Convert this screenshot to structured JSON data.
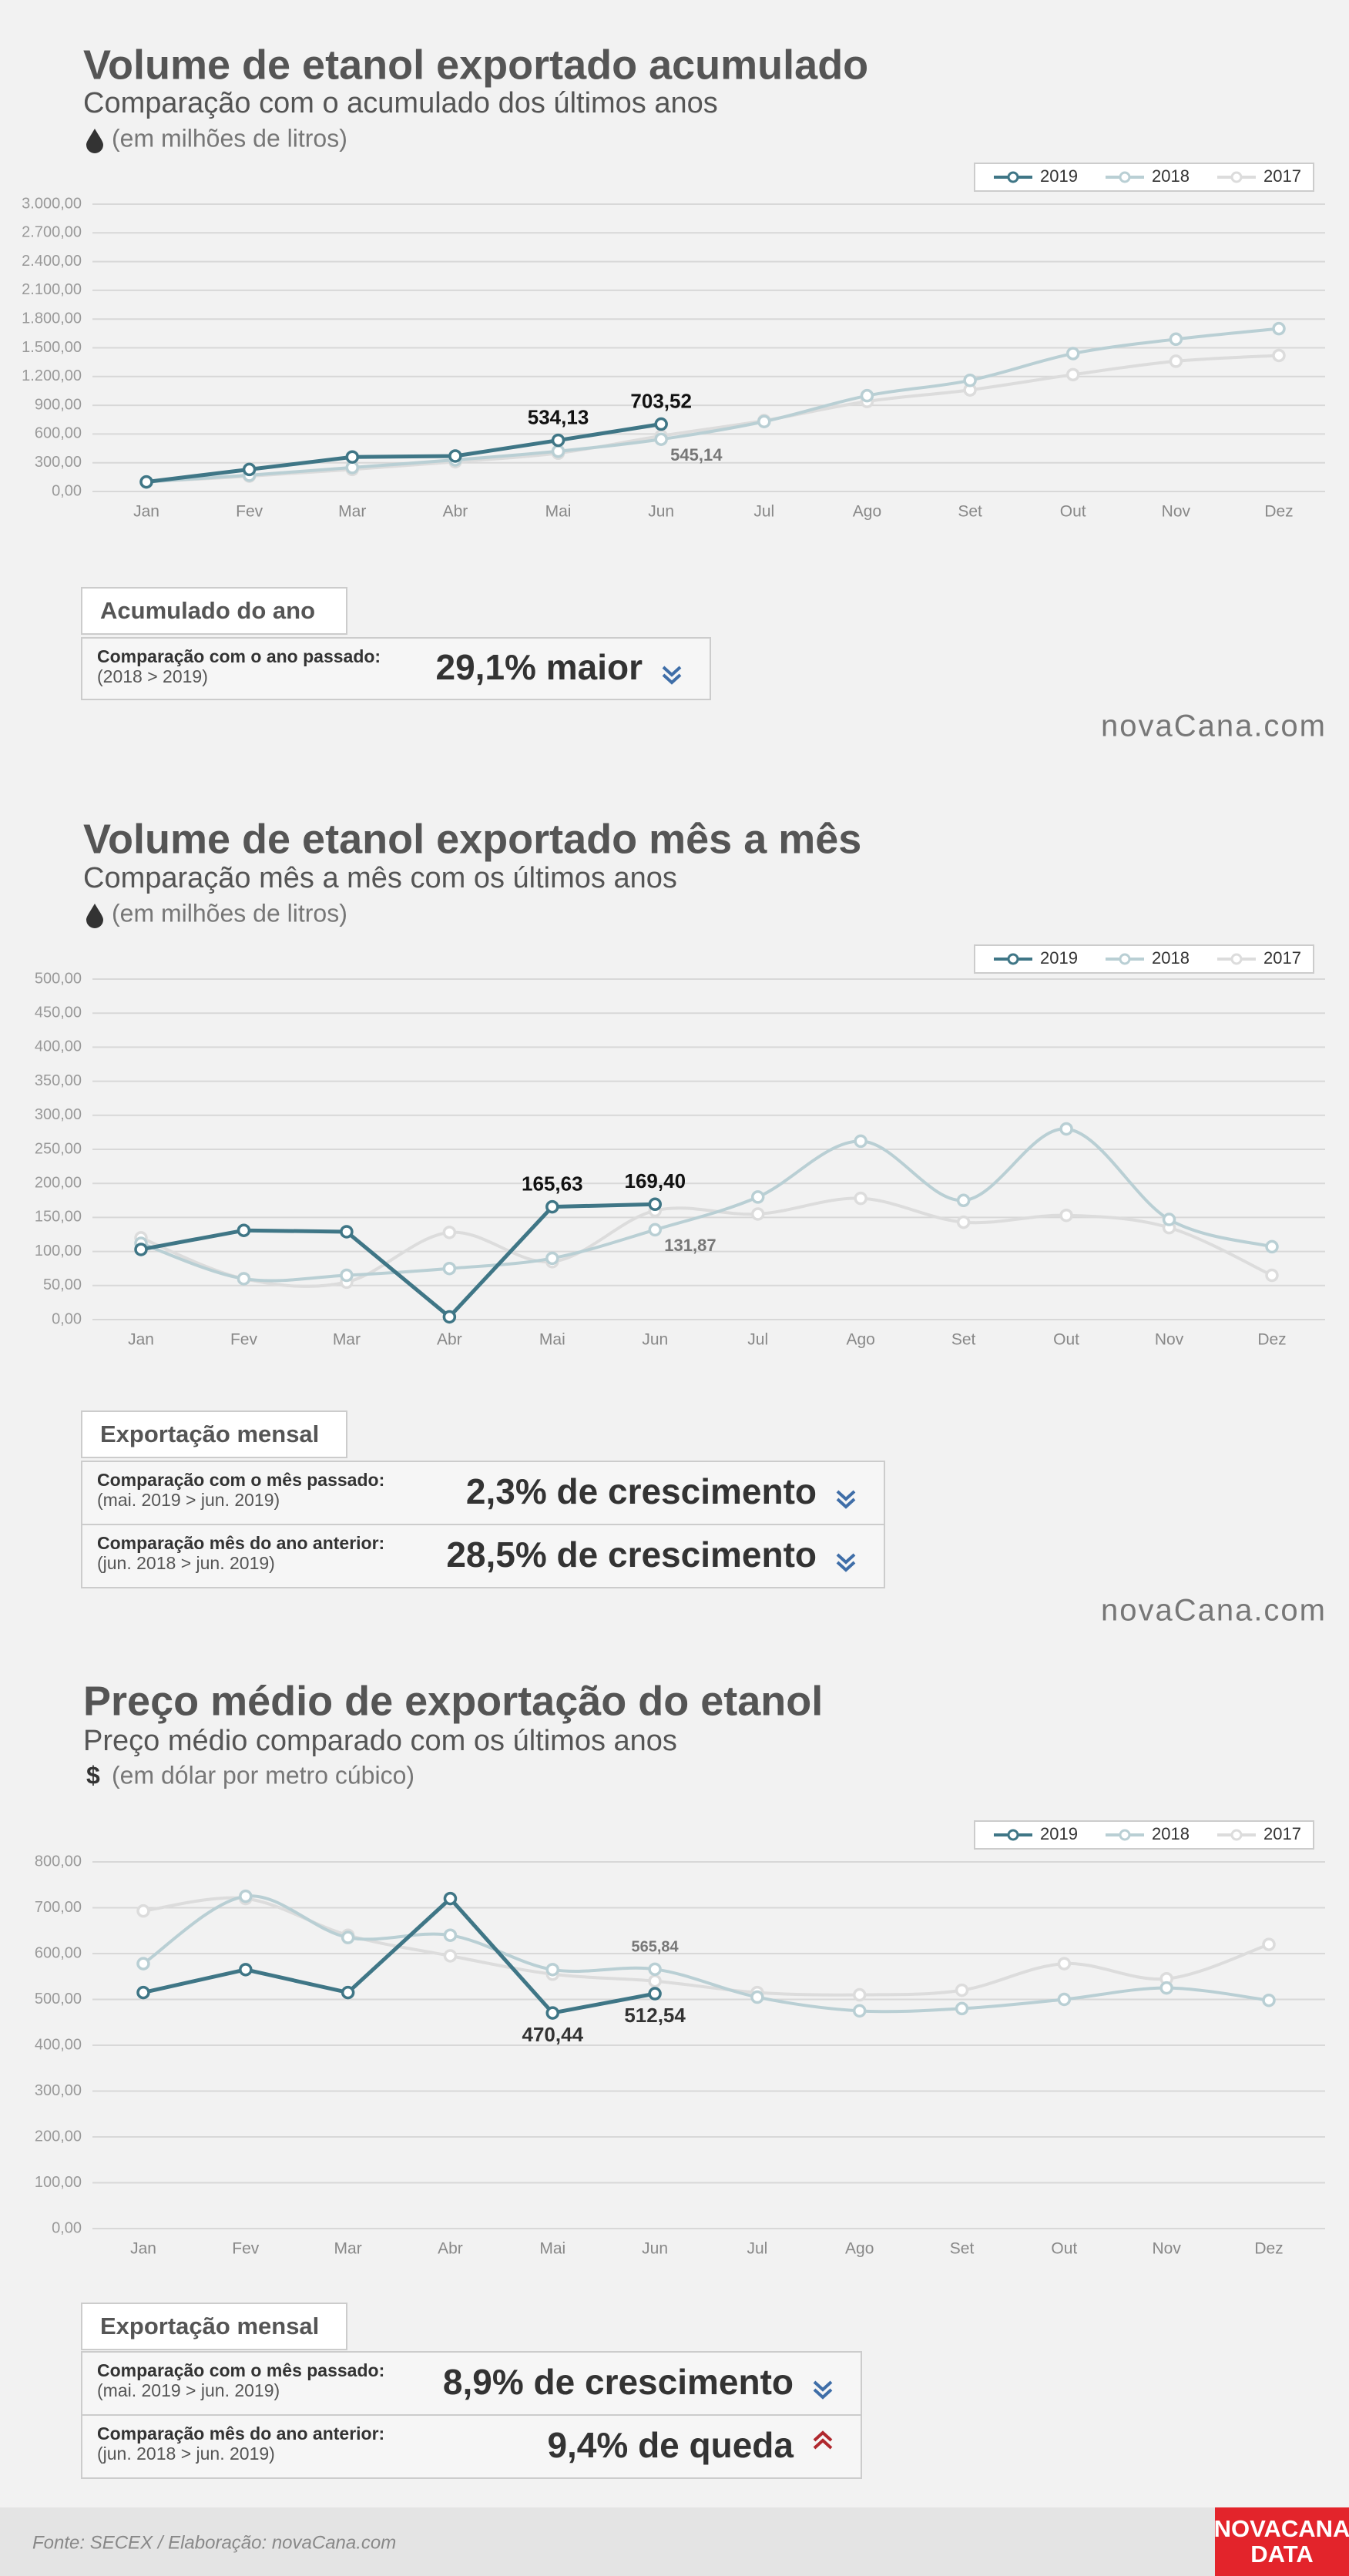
{
  "chart_data": [
    {
      "type": "line",
      "title": "Volume de etanol exportado acumulado",
      "subtitle": "Comparação com o acumulado dos últimos anos",
      "unit": "(em milhões de litros)",
      "categories": [
        "Jan",
        "Fev",
        "Mar",
        "Abr",
        "Mai",
        "Jun",
        "Jul",
        "Ago",
        "Set",
        "Out",
        "Nov",
        "Dez"
      ],
      "series": [
        {
          "name": "2019",
          "color": "#3f7686",
          "smooth": false,
          "values": [
            100,
            230,
            360,
            370,
            534.13,
            703.52,
            null,
            null,
            null,
            null,
            null,
            null
          ],
          "value_labels": [
            null,
            null,
            null,
            null,
            "534,13",
            "703,52",
            null,
            null,
            null,
            null,
            null,
            null
          ]
        },
        {
          "name": "2018",
          "color": "#b9cfd4",
          "smooth": true,
          "values": [
            100,
            170,
            250,
            330,
            420,
            545.14,
            730,
            1000,
            1160,
            1440,
            1590,
            1700
          ],
          "value_labels": [
            null,
            null,
            null,
            null,
            null,
            "545,14",
            null,
            null,
            null,
            null,
            null,
            null
          ]
        },
        {
          "name": "2017",
          "color": "#dcdcdc",
          "smooth": true,
          "values": [
            100,
            160,
            230,
            310,
            400,
            580,
            740,
            940,
            1060,
            1220,
            1360,
            1420
          ]
        }
      ],
      "ylim": [
        0,
        3000
      ],
      "yticks": [
        {
          "value": 0,
          "label": "0,00"
        },
        {
          "value": 300,
          "label": "300,00"
        },
        {
          "value": 600,
          "label": "600,00"
        },
        {
          "value": 900,
          "label": "900,00"
        },
        {
          "value": 1200,
          "label": "1.200,00"
        },
        {
          "value": 1500,
          "label": "1.500,00"
        },
        {
          "value": 1800,
          "label": "1.800,00"
        },
        {
          "value": 2100,
          "label": "2.100,00"
        },
        {
          "value": 2400,
          "label": "2.400,00"
        },
        {
          "value": 2700,
          "label": "2.700,00"
        },
        {
          "value": 3000,
          "label": "3.000,00"
        }
      ],
      "grid": true,
      "legend": "top-right",
      "summary": {
        "title": "Acumulado do ano",
        "rows": [
          {
            "label": "Comparação com o ano passado:",
            "detail": "(2018 > 2019)",
            "value": "29,1% maior",
            "direction": "up"
          }
        ]
      },
      "logo": "novaCana.com"
    },
    {
      "type": "line",
      "title": "Volume de etanol exportado mês a mês",
      "subtitle": "Comparação mês a mês com os últimos anos",
      "unit": "(em milhões de litros)",
      "categories": [
        "Jan",
        "Fev",
        "Mar",
        "Abr",
        "Mai",
        "Jun",
        "Jul",
        "Ago",
        "Set",
        "Out",
        "Nov",
        "Dez"
      ],
      "series": [
        {
          "name": "2019",
          "color": "#3f7686",
          "smooth": false,
          "values": [
            103,
            131,
            129,
            4,
            165.63,
            169.4,
            null,
            null,
            null,
            null,
            null,
            null
          ],
          "value_labels": [
            null,
            null,
            null,
            null,
            "165,63",
            "169,40",
            null,
            null,
            null,
            null,
            null,
            null
          ]
        },
        {
          "name": "2018",
          "color": "#b9cfd4",
          "smooth": true,
          "values": [
            112,
            60,
            65,
            75,
            90,
            131.87,
            180,
            262,
            175,
            280,
            147,
            107
          ],
          "value_labels": [
            null,
            null,
            null,
            null,
            null,
            "131,87",
            null,
            null,
            null,
            null,
            null,
            null
          ]
        },
        {
          "name": "2017",
          "color": "#dcdcdc",
          "smooth": true,
          "values": [
            120,
            60,
            55,
            128,
            85,
            160,
            155,
            178,
            143,
            153,
            135,
            65
          ]
        }
      ],
      "ylim": [
        0,
        500
      ],
      "yticks": [
        {
          "value": 0,
          "label": "0,00"
        },
        {
          "value": 50,
          "label": "50,00"
        },
        {
          "value": 100,
          "label": "100,00"
        },
        {
          "value": 150,
          "label": "150,00"
        },
        {
          "value": 200,
          "label": "200,00"
        },
        {
          "value": 250,
          "label": "250,00"
        },
        {
          "value": 300,
          "label": "300,00"
        },
        {
          "value": 350,
          "label": "350,00"
        },
        {
          "value": 400,
          "label": "400,00"
        },
        {
          "value": 450,
          "label": "450,00"
        },
        {
          "value": 500,
          "label": "500,00"
        }
      ],
      "grid": true,
      "legend": "top-right",
      "summary": {
        "title": "Exportação mensal",
        "rows": [
          {
            "label": "Comparação com o mês passado:",
            "detail": "(mai. 2019 > jun. 2019)",
            "value": "2,3% de crescimento",
            "direction": "up"
          },
          {
            "label": "Comparação mês do ano anterior:",
            "detail": "(jun. 2018 > jun. 2019)",
            "value": "28,5% de crescimento",
            "direction": "up"
          }
        ]
      },
      "logo": "novaCana.com"
    },
    {
      "type": "line",
      "title": "Preço médio de exportação do etanol",
      "subtitle": "Preço médio comparado com os últimos anos",
      "unit_symbol": "$",
      "unit": "(em dólar por metro cúbico)",
      "categories": [
        "Jan",
        "Fev",
        "Mar",
        "Abr",
        "Mai",
        "Jun",
        "Jul",
        "Ago",
        "Set",
        "Out",
        "Nov",
        "Dez"
      ],
      "series": [
        {
          "name": "2019",
          "color": "#3f7686",
          "smooth": false,
          "values": [
            515,
            565,
            515,
            720,
            470.44,
            512.54,
            null,
            null,
            null,
            null,
            null,
            null
          ],
          "value_labels": [
            null,
            null,
            null,
            null,
            "470,44",
            "512,54",
            null,
            null,
            null,
            null,
            null,
            null
          ]
        },
        {
          "name": "2018",
          "color": "#b9cfd4",
          "smooth": true,
          "values": [
            578,
            725,
            635,
            640,
            565,
            565.84,
            505,
            475,
            480,
            500,
            525,
            498
          ],
          "value_labels": [
            null,
            null,
            null,
            null,
            null,
            "565,84",
            null,
            null,
            null,
            null,
            null,
            null
          ]
        },
        {
          "name": "2017",
          "color": "#dcdcdc",
          "smooth": true,
          "values": [
            693,
            720,
            640,
            595,
            555,
            540,
            515,
            510,
            520,
            578,
            545,
            620
          ]
        }
      ],
      "ylim": [
        0,
        800
      ],
      "yticks": [
        {
          "value": 0,
          "label": "0,00"
        },
        {
          "value": 100,
          "label": "100,00"
        },
        {
          "value": 200,
          "label": "200,00"
        },
        {
          "value": 300,
          "label": "300,00"
        },
        {
          "value": 400,
          "label": "400,00"
        },
        {
          "value": 500,
          "label": "500,00"
        },
        {
          "value": 600,
          "label": "600,00"
        },
        {
          "value": 700,
          "label": "700,00"
        },
        {
          "value": 800,
          "label": "800,00"
        }
      ],
      "grid": true,
      "legend": "top-right",
      "summary": {
        "title": "Exportação mensal",
        "rows": [
          {
            "label": "Comparação com o mês passado:",
            "detail": "(mai. 2019 > jun. 2019)",
            "value": "8,9% de crescimento",
            "direction": "up"
          },
          {
            "label": "Comparação mês do ano anterior:",
            "detail": "(jun. 2018 > jun. 2019)",
            "value": "9,4% de queda",
            "direction": "down"
          }
        ]
      }
    }
  ],
  "footer": {
    "source": "Fonte: SECEX  / Elaboração: novaCana.com",
    "brand": "NOVACANA",
    "brand_sub": "DATA"
  }
}
